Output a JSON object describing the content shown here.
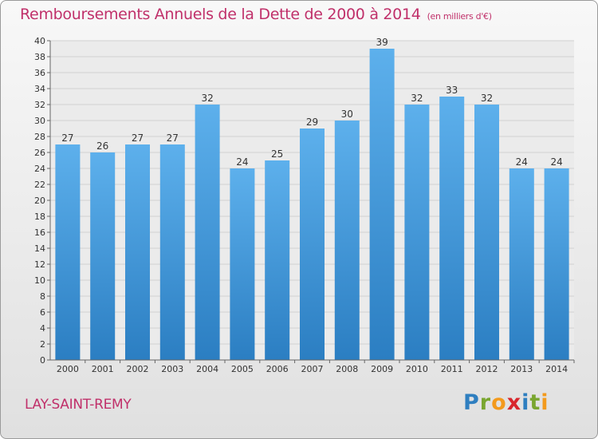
{
  "header": {
    "title": "Remboursements Annuels de la Dette de 2000 à 2014",
    "subtitle": "(en milliers d'€)"
  },
  "footer": {
    "town": "LAY-SAINT-REMY",
    "logo_letters": [
      "P",
      "r",
      "o",
      "x",
      "i",
      "t",
      "i"
    ]
  },
  "chart_data": {
    "type": "bar",
    "categories": [
      "2000",
      "2001",
      "2002",
      "2003",
      "2004",
      "2005",
      "2006",
      "2007",
      "2008",
      "2009",
      "2010",
      "2011",
      "2012",
      "2013",
      "2014"
    ],
    "values": [
      27,
      26,
      27,
      27,
      32,
      24,
      25,
      29,
      30,
      39,
      32,
      33,
      32,
      24,
      24
    ],
    "title": "Remboursements Annuels de la Dette de 2000 à 2014",
    "xlabel": "",
    "ylabel": "",
    "ylim": [
      0,
      40
    ],
    "ytick_step": 2,
    "grid": true,
    "data_labels": true,
    "colors": {
      "bar_top": "#5db0ec",
      "bar_bottom": "#2b7ec2",
      "grid": "#d0d0d0",
      "axis": "#666666"
    }
  }
}
